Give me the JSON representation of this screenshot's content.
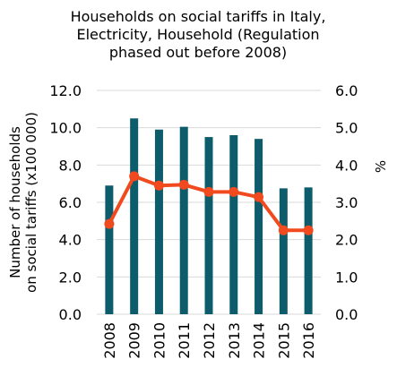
{
  "chart_data": {
    "type": "bar+line",
    "title_lines": [
      "Households on social tariffs in Italy,",
      "Electricity, Household (Regulation",
      "phased out before 2008)"
    ],
    "categories": [
      "2008",
      "2009",
      "2010",
      "2011",
      "2012",
      "2013",
      "2014",
      "2015",
      "2016"
    ],
    "series": [
      {
        "kind": "bar",
        "axis": "left",
        "values": [
          6.9,
          10.5,
          9.9,
          10.05,
          9.5,
          9.6,
          9.4,
          6.75,
          6.8
        ],
        "color": "#0d5c6b"
      },
      {
        "kind": "line",
        "axis": "right",
        "values": [
          2.42,
          3.7,
          3.45,
          3.47,
          3.28,
          3.28,
          3.14,
          2.25,
          2.25
        ],
        "color": "#f04a1e"
      }
    ],
    "left_axis": {
      "ylabel_lines": [
        "Number of households",
        "on social tariffs (x100 000)"
      ],
      "ylim": [
        0,
        12
      ],
      "ticks": [
        "0.0",
        "2.0",
        "4.0",
        "6.0",
        "8.0",
        "10.0",
        "12.0"
      ]
    },
    "right_axis": {
      "ylabel": "%",
      "ylim": [
        0,
        6
      ],
      "ticks": [
        "0.0",
        "1.0",
        "2.0",
        "3.0",
        "4.0",
        "5.0",
        "6.0"
      ]
    },
    "grid": true,
    "legend": "none"
  }
}
